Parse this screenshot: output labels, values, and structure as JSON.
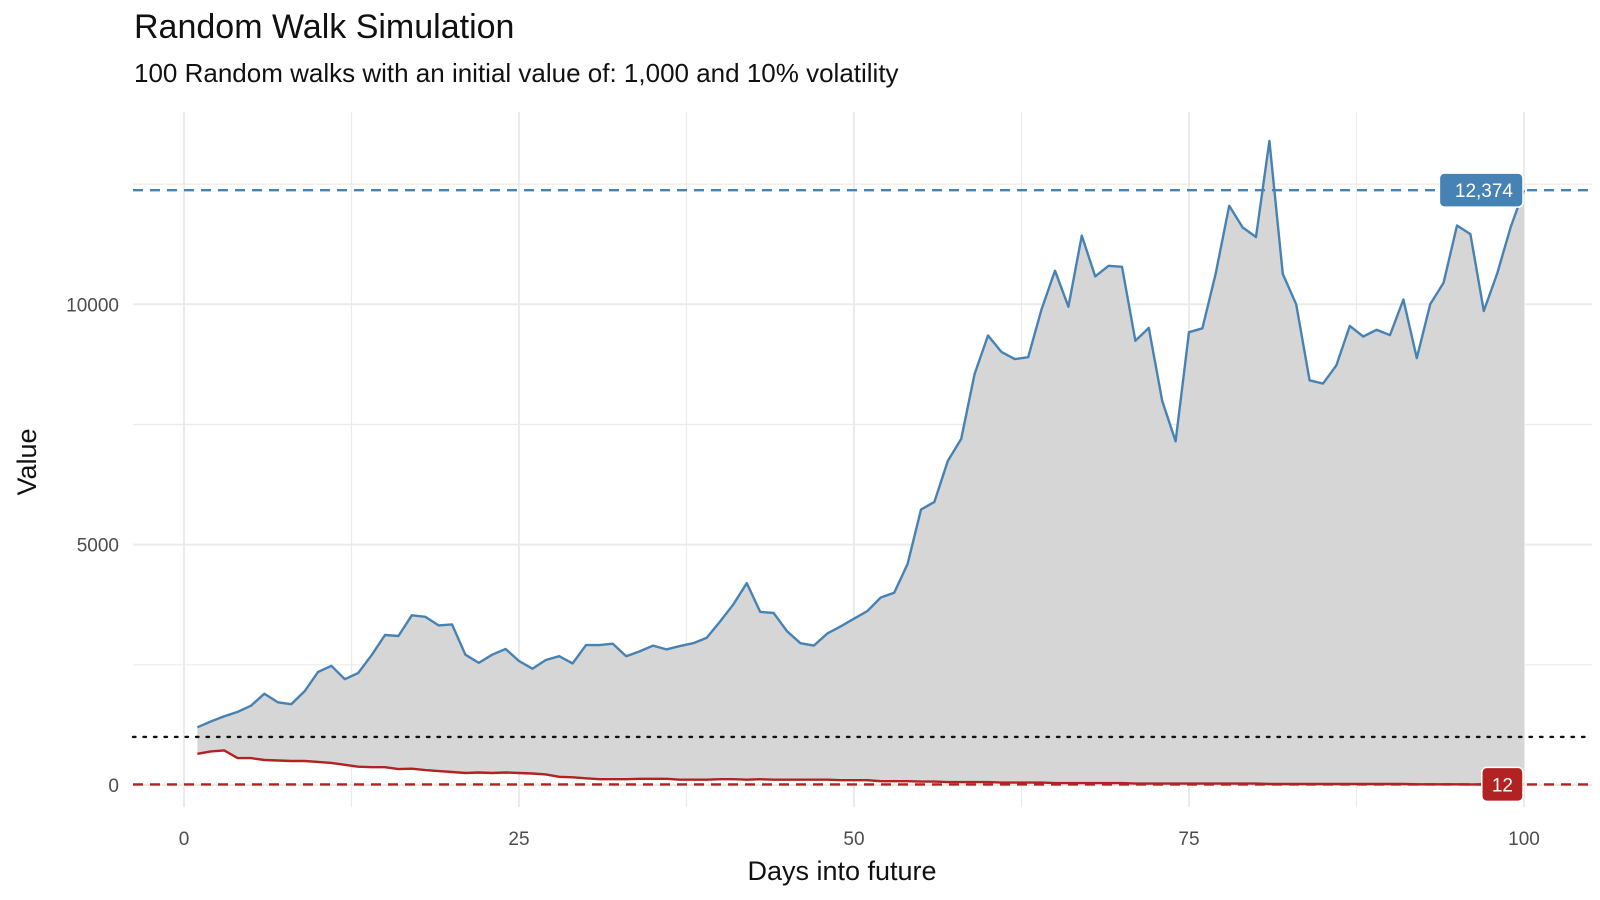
{
  "chart_data": {
    "type": "line",
    "title": "Random Walk Simulation",
    "subtitle": "100 Random walks with an initial value of: 1,000 and 10% volatility",
    "xlabel": "Days into future",
    "ylabel": "Value",
    "xlim": [
      0,
      100
    ],
    "ylim": [
      0,
      13000
    ],
    "x_ticks": [
      "0",
      "25",
      "50",
      "75",
      "100"
    ],
    "y_ticks": [
      "0",
      "5000",
      "10000"
    ],
    "grid": true,
    "initial_value": 1000,
    "x": [
      1,
      2,
      3,
      4,
      5,
      6,
      7,
      8,
      9,
      10,
      11,
      12,
      13,
      14,
      15,
      16,
      17,
      18,
      19,
      20,
      21,
      22,
      23,
      24,
      25,
      26,
      27,
      28,
      29,
      30,
      31,
      32,
      33,
      34,
      35,
      36,
      37,
      38,
      39,
      40,
      41,
      42,
      43,
      44,
      45,
      46,
      47,
      48,
      49,
      50,
      51,
      52,
      53,
      54,
      55,
      56,
      57,
      58,
      59,
      60,
      61,
      62,
      63,
      64,
      65,
      66,
      67,
      68,
      69,
      70,
      71,
      72,
      73,
      74,
      75,
      76,
      77,
      78,
      79,
      80,
      81,
      82,
      83,
      84,
      85,
      86,
      87,
      88,
      89,
      90,
      91,
      92,
      93,
      94,
      95,
      96,
      97,
      98,
      99,
      100
    ],
    "series": [
      {
        "color": "#4682b4",
        "values": [
          1200,
          1320,
          1430,
          1520,
          1650,
          1900,
          1720,
          1680,
          1950,
          2350,
          2480,
          2200,
          2330,
          2700,
          3120,
          3100,
          3530,
          3500,
          3320,
          3340,
          2710,
          2540,
          2710,
          2830,
          2580,
          2420,
          2600,
          2680,
          2530,
          2910,
          2910,
          2940,
          2680,
          2780,
          2900,
          2820,
          2890,
          2950,
          3060,
          3400,
          3760,
          4200,
          3600,
          3580,
          3200,
          2950,
          2900,
          3150,
          3300,
          3460,
          3620,
          3900,
          4000,
          4600,
          5730,
          5890,
          6740,
          7200,
          8550,
          9350,
          9010,
          8860,
          8900,
          9900,
          10700,
          9950,
          11430,
          10580,
          10800,
          10780,
          9240,
          9510,
          7990,
          7150,
          9420,
          9500,
          10650,
          12050,
          11600,
          11400,
          13400,
          10630,
          10000,
          8420,
          8350,
          8730,
          9550,
          9330,
          9470,
          9360,
          10100,
          8880,
          10000,
          10450,
          11640,
          11460,
          9860,
          10640,
          11600,
          12374
        ]
      },
      {
        "color": "#b22222",
        "values": [
          650,
          700,
          720,
          560,
          560,
          520,
          510,
          500,
          500,
          480,
          460,
          420,
          380,
          370,
          370,
          330,
          340,
          310,
          290,
          270,
          250,
          260,
          250,
          260,
          250,
          240,
          220,
          170,
          160,
          140,
          120,
          120,
          120,
          130,
          130,
          130,
          110,
          110,
          110,
          120,
          120,
          110,
          120,
          110,
          110,
          110,
          110,
          110,
          100,
          100,
          100,
          80,
          80,
          80,
          70,
          70,
          60,
          60,
          60,
          60,
          50,
          50,
          50,
          50,
          40,
          40,
          40,
          40,
          40,
          40,
          30,
          30,
          30,
          30,
          30,
          30,
          30,
          30,
          30,
          30,
          20,
          20,
          20,
          20,
          20,
          20,
          20,
          20,
          20,
          20,
          20,
          15,
          15,
          15,
          14,
          13,
          13,
          12,
          12,
          12
        ]
      }
    ],
    "reference_lines": [
      {
        "value": 12374,
        "style": "dashed",
        "color": "#4682b4",
        "label": "12,374"
      },
      {
        "value": 1000,
        "style": "dotted",
        "color": "#111111"
      },
      {
        "value": 12,
        "style": "dashed",
        "color": "#b22222",
        "label": "12"
      }
    ],
    "fill_color": "#d6d6d6"
  }
}
